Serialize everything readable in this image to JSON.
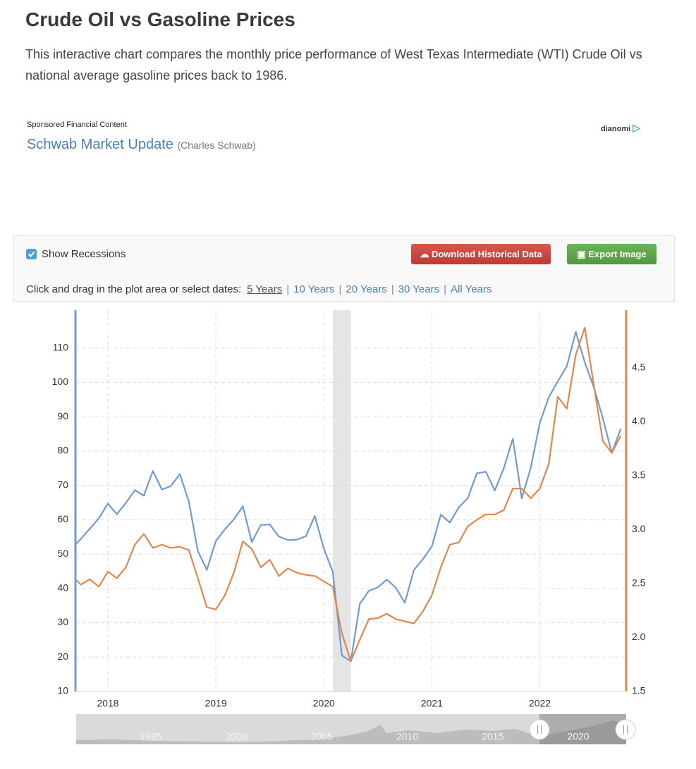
{
  "header": {
    "title": "Crude Oil vs Gasoline Prices",
    "description": "This interactive chart compares the monthly price performance of West Texas Intermediate (WTI) Crude Oil vs national average gasoline prices back to 1986."
  },
  "sponsored": {
    "label": "Sponsored Financial Content",
    "link": "Schwab Market Update",
    "source": "(Charles Schwab)",
    "brand": "dianomi"
  },
  "controls": {
    "show_recessions": "Show Recessions",
    "download": "Download Historical Data",
    "export": "Export Image",
    "hint": "Click and drag in the plot area or select dates:",
    "ranges": [
      "5 Years",
      "10 Years",
      "20 Years",
      "30 Years",
      "All Years"
    ]
  },
  "chart_data": {
    "type": "line",
    "x": [
      "2017-09",
      "2017-10",
      "2017-11",
      "2017-12",
      "2018-01",
      "2018-02",
      "2018-03",
      "2018-04",
      "2018-05",
      "2018-06",
      "2018-07",
      "2018-08",
      "2018-09",
      "2018-10",
      "2018-11",
      "2018-12",
      "2019-01",
      "2019-02",
      "2019-03",
      "2019-04",
      "2019-05",
      "2019-06",
      "2019-07",
      "2019-08",
      "2019-09",
      "2019-10",
      "2019-11",
      "2019-12",
      "2020-01",
      "2020-02",
      "2020-03",
      "2020-04",
      "2020-05",
      "2020-06",
      "2020-07",
      "2020-08",
      "2020-09",
      "2020-10",
      "2020-11",
      "2020-12",
      "2021-01",
      "2021-02",
      "2021-03",
      "2021-04",
      "2021-05",
      "2021-06",
      "2021-07",
      "2021-08",
      "2021-09",
      "2021-10",
      "2021-11",
      "2021-12",
      "2022-01",
      "2022-02",
      "2022-03",
      "2022-04",
      "2022-05",
      "2022-06",
      "2022-07",
      "2022-08",
      "2022-09",
      "2022-10"
    ],
    "series": [
      {
        "color": "#6f9bd2",
        "axis": "y",
        "values": [
          51.7,
          54.4,
          57.4,
          60.4,
          64.7,
          61.6,
          64.9,
          68.6,
          67.0,
          74.2,
          68.8,
          69.8,
          73.3,
          65.3,
          50.9,
          45.4,
          53.8,
          57.2,
          60.1,
          63.9,
          53.5,
          58.5,
          58.6,
          55.1,
          54.1,
          54.2,
          55.2,
          61.1,
          51.6,
          44.8,
          20.5,
          18.8,
          35.5,
          39.3,
          40.3,
          42.6,
          40.2,
          35.8,
          45.3,
          48.5,
          52.2,
          61.5,
          59.2,
          63.6,
          66.3,
          73.5,
          74.0,
          68.5,
          75.0,
          83.6,
          66.2,
          75.2,
          88.2,
          95.7,
          100.3,
          104.7,
          114.7,
          105.8,
          98.6,
          89.6,
          79.5,
          86.5
        ]
      },
      {
        "color": "#e2874c",
        "axis": "y2",
        "values": [
          2.57,
          2.49,
          2.54,
          2.47,
          2.61,
          2.55,
          2.65,
          2.86,
          2.96,
          2.83,
          2.86,
          2.83,
          2.84,
          2.81,
          2.55,
          2.28,
          2.26,
          2.39,
          2.6,
          2.89,
          2.82,
          2.65,
          2.72,
          2.57,
          2.64,
          2.6,
          2.58,
          2.57,
          2.52,
          2.47,
          2.04,
          1.78,
          1.98,
          2.17,
          2.18,
          2.22,
          2.17,
          2.15,
          2.13,
          2.24,
          2.39,
          2.65,
          2.86,
          2.88,
          3.03,
          3.09,
          3.14,
          3.14,
          3.18,
          3.38,
          3.38,
          3.29,
          3.38,
          3.61,
          4.23,
          4.12,
          4.62,
          4.87,
          4.34,
          3.82,
          3.71,
          3.87
        ]
      }
    ],
    "recessions": [
      {
        "start": "2020-02",
        "end": "2020-04"
      }
    ],
    "xlim": [
      2017.7,
      2022.8
    ],
    "xticks": [
      2018,
      2019,
      2020,
      2021,
      2022
    ],
    "ylim": [
      10,
      120
    ],
    "yticks": [
      10,
      20,
      30,
      40,
      50,
      60,
      70,
      80,
      90,
      100,
      110
    ],
    "y2lim": [
      1.5,
      5.0
    ],
    "y2ticks": [
      1.5,
      {
        "value": 2,
        "label": "2.0"
      },
      2.5,
      {
        "value": 3,
        "label": "3.0"
      },
      3.5,
      {
        "value": 4,
        "label": "4.0"
      },
      4.5
    ],
    "grid": true
  },
  "navigator": {
    "labels": [
      1995,
      2000,
      2005,
      2010,
      2015,
      2020
    ]
  }
}
